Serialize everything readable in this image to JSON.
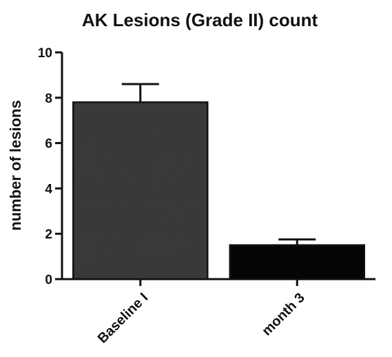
{
  "chart_data": {
    "type": "bar",
    "title": "AK Lesions (Grade II) count",
    "xlabel": "",
    "ylabel": "number of lesions",
    "categories": [
      "Baseline I",
      "month 3"
    ],
    "values": [
      7.8,
      1.5
    ],
    "error_upper": [
      8.6,
      1.75
    ],
    "ylim": [
      0,
      10
    ],
    "yticks": [
      0,
      2,
      4,
      6,
      8,
      10
    ],
    "bar_colors": [
      "#2e2e2e",
      "#050505"
    ],
    "grid": false,
    "legend": "none"
  }
}
